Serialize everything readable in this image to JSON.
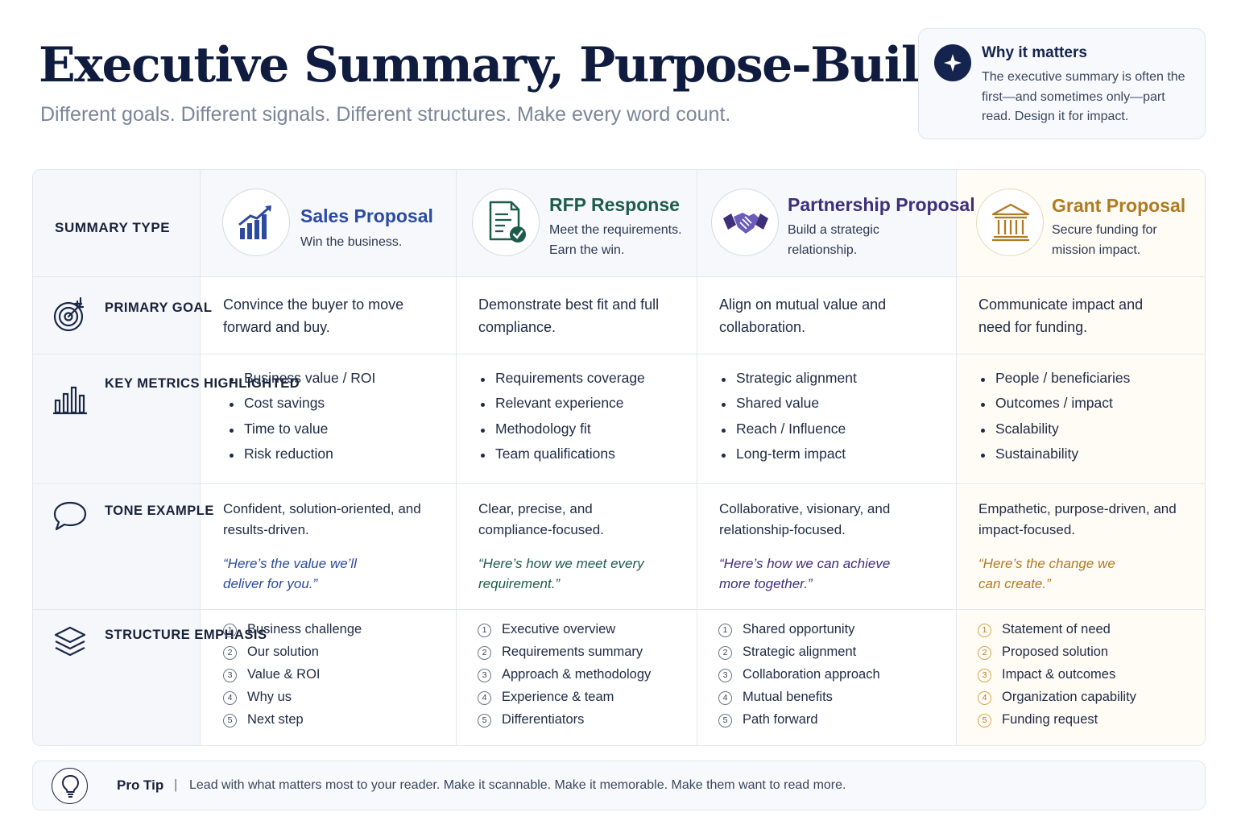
{
  "header": {
    "title": "Executive Summary, Purpose-Built",
    "subtitle": "Different goals. Different signals. Different structures. Make every word count."
  },
  "why_card": {
    "icon": "sparkle-icon",
    "title": "Why it matters",
    "body": "The executive summary is often the first—and sometimes only—part read. Design it for impact."
  },
  "table": {
    "summary_type_label": "SUMMARY TYPE",
    "row_labels": {
      "goal": "Primary Goal",
      "metrics": "Key Metrics Highlighted",
      "tone": "Tone Example",
      "structure": "Structure Emphasis"
    },
    "columns": [
      {
        "icon": "bar-chart-growth-icon",
        "title": "Sales Proposal",
        "subtitle": "Win the business.",
        "accent": "#2b4aa0",
        "goal": "Convince the buyer to move forward and buy.",
        "metrics": [
          "Business value / ROI",
          "Cost savings",
          "Time to value",
          "Risk reduction"
        ],
        "tone": "Confident, solution-oriented, and results-driven.",
        "quote": "“Here’s the value we’ll deliver for you.”",
        "structure": [
          "Business challenge",
          "Our solution",
          "Value & ROI",
          "Why us",
          "Next step"
        ]
      },
      {
        "icon": "document-check-icon",
        "title": "RFP Response",
        "subtitle": "Meet the requirements. Earn the win.",
        "accent": "#1d5b4a",
        "goal": "Demonstrate best fit and full compliance.",
        "metrics": [
          "Requirements coverage",
          "Relevant experience",
          "Methodology fit",
          "Team qualifications"
        ],
        "tone": "Clear, precise, and compliance-focused.",
        "quote": "“Here’s how we meet every requirement.”",
        "structure": [
          "Executive overview",
          "Requirements summary",
          "Approach & methodology",
          "Experience & team",
          "Differentiators"
        ]
      },
      {
        "icon": "handshake-icon",
        "title": "Partnership Proposal",
        "subtitle": "Build a strategic relationship.",
        "accent": "#3e2f78",
        "goal": "Align on mutual value and collaboration.",
        "metrics": [
          "Strategic alignment",
          "Shared value",
          "Reach / Influence",
          "Long-term impact"
        ],
        "tone": "Collaborative, visionary, and relationship-focused.",
        "quote": "“Here’s how we can achieve more together.”",
        "structure": [
          "Shared opportunity",
          "Strategic alignment",
          "Collaboration approach",
          "Mutual benefits",
          "Path forward"
        ]
      },
      {
        "icon": "institution-icon",
        "title": "Grant Proposal",
        "subtitle": "Secure funding for mission impact.",
        "accent": "#b07a22",
        "goal": "Communicate impact and need for funding.",
        "metrics": [
          "People / beneficiaries",
          "Outcomes / impact",
          "Scalability",
          "Sustainability"
        ],
        "tone": "Empathetic, purpose-driven, and impact-focused.",
        "quote": "“Here’s the change we can create.”",
        "structure": [
          "Statement of need",
          "Proposed solution",
          "Impact & outcomes",
          "Organization capability",
          "Funding request"
        ]
      }
    ]
  },
  "pro_tip": {
    "icon": "lightbulb-icon",
    "label": "Pro Tip",
    "separator": "|",
    "text": "Lead with what matters most to your reader. Make it scannable. Make it memorable. Make them want to read more."
  }
}
